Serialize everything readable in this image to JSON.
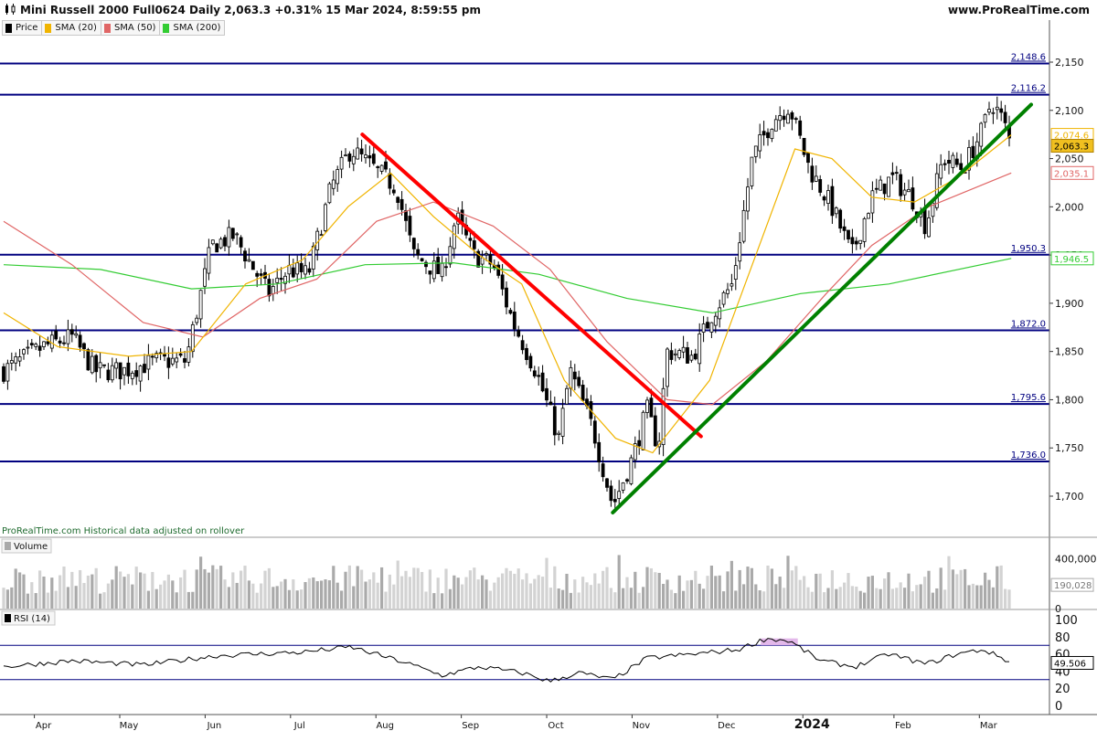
{
  "header": {
    "title": "Mini Russell 2000 Full0624 Daily 2,063.3 +0.31% 15 Mar 2024, 8:59:55 pm",
    "site": "www.ProRealTime.com"
  },
  "legend": [
    {
      "label": "Price",
      "color": "#000000"
    },
    {
      "label": "SMA (20)",
      "color": "#f0b400"
    },
    {
      "label": "SMA (50)",
      "color": "#e06666"
    },
    {
      "label": "SMA (200)",
      "color": "#33cc33"
    }
  ],
  "note": "ProRealTime.com  Historical data adjusted on rollover",
  "volume_label": "Volume",
  "rsi_label": "RSI (14)",
  "chart_data": {
    "type": "candlestick",
    "instrument": "Mini Russell 2000 Full0624",
    "x_labels": [
      "Apr",
      "May",
      "Jun",
      "Jul",
      "Aug",
      "Sep",
      "Oct",
      "Nov",
      "Dec",
      "2024",
      "Feb",
      "Mar"
    ],
    "price_axis": {
      "ticks": [
        1700,
        1750,
        1800,
        1850,
        1900,
        1950,
        2000,
        2050,
        2100,
        2150
      ],
      "tick_labels": [
        "1,700",
        "1,750",
        "1,800",
        "1,850",
        "1,900",
        "1,950",
        "2,000",
        "2,050",
        "2,100",
        "2,150"
      ]
    },
    "levels": [
      {
        "value": 2148.6,
        "label": "2,148.6"
      },
      {
        "value": 2116.2,
        "label": "2,116.2"
      },
      {
        "value": 1950.3,
        "label": "1,950.3"
      },
      {
        "value": 1872.0,
        "label": "1,872.0"
      },
      {
        "value": 1795.6,
        "label": "1,795.6"
      },
      {
        "value": 1736.0,
        "label": "1,736.0"
      }
    ],
    "last_values": [
      {
        "label": "2,074.6",
        "value": 2074.6,
        "color": "#f0b400",
        "series": "SMA (20)"
      },
      {
        "label": "2,063.3",
        "value": 2063.3,
        "color": "#000000",
        "series": "Price"
      },
      {
        "label": "2,035.1",
        "value": 2035.1,
        "color": "#e06666",
        "series": "SMA (50)"
      },
      {
        "label": "1,946.5",
        "value": 1946.5,
        "color": "#33cc33",
        "series": "SMA (200)"
      }
    ],
    "trendlines": [
      {
        "color": "#ff0000",
        "from": {
          "x": "Jul 31",
          "y": 2075
        },
        "to": {
          "x": "Nov 27",
          "y": 1762
        }
      },
      {
        "color": "#008000",
        "from": {
          "x": "Oct 27",
          "y": 1683
        },
        "to": {
          "x": "Mar 22",
          "y": 2106
        }
      }
    ],
    "price_path": [
      {
        "x": "Mar 27",
        "y": 1830
      },
      {
        "x": "Apr 10",
        "y": 1855
      },
      {
        "x": "Apr 20",
        "y": 1865
      },
      {
        "x": "Apr 28",
        "y": 1830
      },
      {
        "x": "May 8",
        "y": 1830
      },
      {
        "x": "May 20",
        "y": 1840
      },
      {
        "x": "May 30",
        "y": 1840
      },
      {
        "x": "Jun 8",
        "y": 1960
      },
      {
        "x": "Jun 16",
        "y": 1970
      },
      {
        "x": "Jun 23",
        "y": 1935
      },
      {
        "x": "Jun 28",
        "y": 1910
      },
      {
        "x": "Jul 5",
        "y": 1935
      },
      {
        "x": "Jul 12",
        "y": 1930
      },
      {
        "x": "Jul 20",
        "y": 2020
      },
      {
        "x": "Jul 27",
        "y": 2060
      },
      {
        "x": "Aug 2",
        "y": 2045
      },
      {
        "x": "Aug 12",
        "y": 2020
      },
      {
        "x": "Aug 18",
        "y": 1950
      },
      {
        "x": "Aug 28",
        "y": 1930
      },
      {
        "x": "Sep 2",
        "y": 1990
      },
      {
        "x": "Sep 8",
        "y": 1950
      },
      {
        "x": "Sep 15",
        "y": 1940
      },
      {
        "x": "Sep 22",
        "y": 1880
      },
      {
        "x": "Sep 30",
        "y": 1830
      },
      {
        "x": "Oct 8",
        "y": 1760
      },
      {
        "x": "Oct 12",
        "y": 1830
      },
      {
        "x": "Oct 20",
        "y": 1770
      },
      {
        "x": "Oct 27",
        "y": 1690
      },
      {
        "x": "Nov 3",
        "y": 1740
      },
      {
        "x": "Nov 8",
        "y": 1790
      },
      {
        "x": "Nov 12",
        "y": 1750
      },
      {
        "x": "Nov 15",
        "y": 1850
      },
      {
        "x": "Nov 24",
        "y": 1845
      },
      {
        "x": "Dec 1",
        "y": 1890
      },
      {
        "x": "Dec 8",
        "y": 1920
      },
      {
        "x": "Dec 15",
        "y": 2050
      },
      {
        "x": "Dec 22",
        "y": 2090
      },
      {
        "x": "Dec 28",
        "y": 2105
      },
      {
        "x": "Jan 4",
        "y": 2040
      },
      {
        "x": "Jan 12",
        "y": 2000
      },
      {
        "x": "Jan 19",
        "y": 1950
      },
      {
        "x": "Jan 26",
        "y": 2010
      },
      {
        "x": "Feb 2",
        "y": 2030
      },
      {
        "x": "Feb 9",
        "y": 2010
      },
      {
        "x": "Feb 14",
        "y": 1980
      },
      {
        "x": "Feb 20",
        "y": 2050
      },
      {
        "x": "Feb 27",
        "y": 2040
      },
      {
        "x": "Mar 5",
        "y": 2080
      },
      {
        "x": "Mar 8",
        "y": 2110
      },
      {
        "x": "Mar 12",
        "y": 2090
      },
      {
        "x": "Mar 15",
        "y": 2063
      }
    ],
    "sma20_path": [
      {
        "x": "Mar 27",
        "y": 1890
      },
      {
        "x": "Apr 15",
        "y": 1855
      },
      {
        "x": "May 10",
        "y": 1845
      },
      {
        "x": "Jun 1",
        "y": 1850
      },
      {
        "x": "Jun 20",
        "y": 1920
      },
      {
        "x": "Jul 10",
        "y": 1945
      },
      {
        "x": "Jul 26",
        "y": 2000
      },
      {
        "x": "Aug 10",
        "y": 2035
      },
      {
        "x": "Aug 25",
        "y": 1990
      },
      {
        "x": "Sep 10",
        "y": 1950
      },
      {
        "x": "Sep 25",
        "y": 1920
      },
      {
        "x": "Oct 10",
        "y": 1820
      },
      {
        "x": "Oct 28",
        "y": 1760
      },
      {
        "x": "Nov 10",
        "y": 1745
      },
      {
        "x": "Nov 30",
        "y": 1820
      },
      {
        "x": "Dec 15",
        "y": 1940
      },
      {
        "x": "Dec 30",
        "y": 2060
      },
      {
        "x": "Jan 12",
        "y": 2050
      },
      {
        "x": "Jan 26",
        "y": 2010
      },
      {
        "x": "Feb 10",
        "y": 2005
      },
      {
        "x": "Feb 25",
        "y": 2030
      },
      {
        "x": "Mar 15",
        "y": 2074.6
      }
    ],
    "sma50_path": [
      {
        "x": "Mar 27",
        "y": 1985
      },
      {
        "x": "Apr 20",
        "y": 1940
      },
      {
        "x": "May 15",
        "y": 1880
      },
      {
        "x": "Jun 5",
        "y": 1865
      },
      {
        "x": "Jun 25",
        "y": 1905
      },
      {
        "x": "Jul 15",
        "y": 1925
      },
      {
        "x": "Aug 5",
        "y": 1985
      },
      {
        "x": "Aug 25",
        "y": 2005
      },
      {
        "x": "Sep 15",
        "y": 1980
      },
      {
        "x": "Oct 5",
        "y": 1935
      },
      {
        "x": "Oct 25",
        "y": 1860
      },
      {
        "x": "Nov 15",
        "y": 1800
      },
      {
        "x": "Dec 1",
        "y": 1795
      },
      {
        "x": "Dec 20",
        "y": 1840
      },
      {
        "x": "Jan 10",
        "y": 1910
      },
      {
        "x": "Jan 26",
        "y": 1960
      },
      {
        "x": "Feb 15",
        "y": 2000
      },
      {
        "x": "Mar 15",
        "y": 2035.1
      }
    ],
    "sma200_path": [
      {
        "x": "Mar 27",
        "y": 1940
      },
      {
        "x": "Apr 30",
        "y": 1935
      },
      {
        "x": "Jun 1",
        "y": 1915
      },
      {
        "x": "Jul 1",
        "y": 1920
      },
      {
        "x": "Aug 1",
        "y": 1940
      },
      {
        "x": "Sep 1",
        "y": 1942
      },
      {
        "x": "Oct 1",
        "y": 1930
      },
      {
        "x": "Nov 1",
        "y": 1905
      },
      {
        "x": "Dec 1",
        "y": 1890
      },
      {
        "x": "Jan 1",
        "y": 1910
      },
      {
        "x": "Feb 1",
        "y": 1920
      },
      {
        "x": "Mar 15",
        "y": 1946.5
      }
    ],
    "volume": {
      "axis_labels": [
        "400,000",
        "0"
      ],
      "ticks": [
        400000,
        0
      ],
      "last_label": "190,028",
      "last_value": 190028,
      "max": 470000
    },
    "rsi": {
      "axis_labels": [
        "100",
        "80",
        "60",
        "40",
        "20",
        "0"
      ],
      "ticks": [
        100,
        80,
        60,
        40,
        20,
        0
      ],
      "levels": [
        70,
        30
      ],
      "last_label": "49.506",
      "last_value": 49.506,
      "path": [
        {
          "x": "Mar 27",
          "y": 45
        },
        {
          "x": "Apr 20",
          "y": 52
        },
        {
          "x": "May 15",
          "y": 47
        },
        {
          "x": "Jun 10",
          "y": 58
        },
        {
          "x": "Jul 10",
          "y": 62
        },
        {
          "x": "Jul 27",
          "y": 68
        },
        {
          "x": "Aug 15",
          "y": 50
        },
        {
          "x": "Aug 28",
          "y": 35
        },
        {
          "x": "Sep 10",
          "y": 45
        },
        {
          "x": "Sep 25",
          "y": 38
        },
        {
          "x": "Oct 5",
          "y": 28
        },
        {
          "x": "Oct 15",
          "y": 38
        },
        {
          "x": "Oct 27",
          "y": 30
        },
        {
          "x": "Nov 8",
          "y": 55
        },
        {
          "x": "Nov 25",
          "y": 60
        },
        {
          "x": "Dec 10",
          "y": 65
        },
        {
          "x": "Dec 20",
          "y": 78
        },
        {
          "x": "Dec 28",
          "y": 75
        },
        {
          "x": "Jan 8",
          "y": 52
        },
        {
          "x": "Jan 20",
          "y": 45
        },
        {
          "x": "Feb 1",
          "y": 60
        },
        {
          "x": "Feb 14",
          "y": 48
        },
        {
          "x": "Feb 25",
          "y": 60
        },
        {
          "x": "Mar 5",
          "y": 65
        },
        {
          "x": "Mar 12",
          "y": 55
        },
        {
          "x": "Mar 15",
          "y": 49.5
        }
      ]
    }
  },
  "colors": {
    "level_line": "#000080",
    "up_candle": "#ffffff",
    "down_candle": "#000000",
    "volume_up": "#aaaaaa",
    "volume_down": "#d3d3d3",
    "rsi_overbought_fill": "#e0b0e8"
  }
}
